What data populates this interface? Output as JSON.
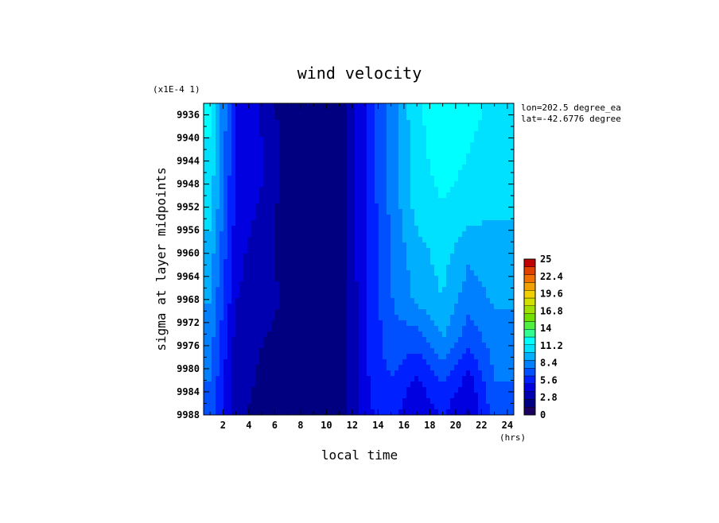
{
  "chart_data": {
    "type": "heatmap",
    "title": "wind velocity",
    "xlabel": "local time",
    "ylabel": "sigma at layer midpoints",
    "x_unit": "(hrs)",
    "y_scale_note": "(x1E-4 1)",
    "annotations": [
      "lon=202.5 degree_ea",
      "lat=-42.6776 degree"
    ],
    "x": [
      1,
      3,
      5,
      7,
      9,
      11,
      13,
      15,
      17,
      19,
      21,
      23
    ],
    "x_ticks": [
      2,
      4,
      6,
      8,
      10,
      12,
      14,
      16,
      18,
      20,
      22,
      24
    ],
    "xlim": [
      0.5,
      24.5
    ],
    "y": [
      9936,
      9944,
      9952,
      9960,
      9968,
      9976,
      9982,
      9988
    ],
    "y_ticks": [
      9936,
      9940,
      9944,
      9948,
      9952,
      9956,
      9960,
      9964,
      9968,
      9972,
      9976,
      9980,
      9984,
      9988
    ],
    "ylim": [
      9988,
      9934
    ],
    "z": [
      [
        11.5,
        5.0,
        3.5,
        1.8,
        1.5,
        1.5,
        5.0,
        8.0,
        11.0,
        12.0,
        11.5,
        11.0
      ],
      [
        11.0,
        4.8,
        4.0,
        1.8,
        1.5,
        1.5,
        5.0,
        8.0,
        10.8,
        11.8,
        11.2,
        10.8
      ],
      [
        10.5,
        4.6,
        3.5,
        1.8,
        1.5,
        1.5,
        5.0,
        7.8,
        10.5,
        11.2,
        10.6,
        10.2
      ],
      [
        9.5,
        4.2,
        3.0,
        2.0,
        1.5,
        1.5,
        4.9,
        7.6,
        9.5,
        10.5,
        9.0,
        9.5
      ],
      [
        8.8,
        3.8,
        2.8,
        2.4,
        1.5,
        1.5,
        4.8,
        7.4,
        9.0,
        10.0,
        8.0,
        9.0
      ],
      [
        8.0,
        3.2,
        2.5,
        2.2,
        1.5,
        1.5,
        4.8,
        7.0,
        6.5,
        8.5,
        6.5,
        8.0
      ],
      [
        7.5,
        3.0,
        2.3,
        1.8,
        1.5,
        1.5,
        4.8,
        6.2,
        4.8,
        6.5,
        4.5,
        7.5
      ],
      [
        7.0,
        2.8,
        2.1,
        1.6,
        1.5,
        1.5,
        4.8,
        5.4,
        3.8,
        5.0,
        3.5,
        6.8
      ]
    ],
    "colorbar": {
      "min": 0,
      "max": 25,
      "tick_labels": [
        "0",
        "2.8",
        "5.6",
        "8.4",
        "11.2",
        "14",
        "16.8",
        "19.6",
        "22.4",
        "25"
      ],
      "colors": [
        "#1c0060",
        "#000080",
        "#0000b0",
        "#0000e0",
        "#0020ff",
        "#0050ff",
        "#0080ff",
        "#00b0ff",
        "#00e0ff",
        "#00ffff",
        "#30ff90",
        "#50f040",
        "#70e000",
        "#a0e000",
        "#d0e000",
        "#f0d000",
        "#f0a000",
        "#f07000",
        "#e04000",
        "#c00000"
      ]
    }
  }
}
